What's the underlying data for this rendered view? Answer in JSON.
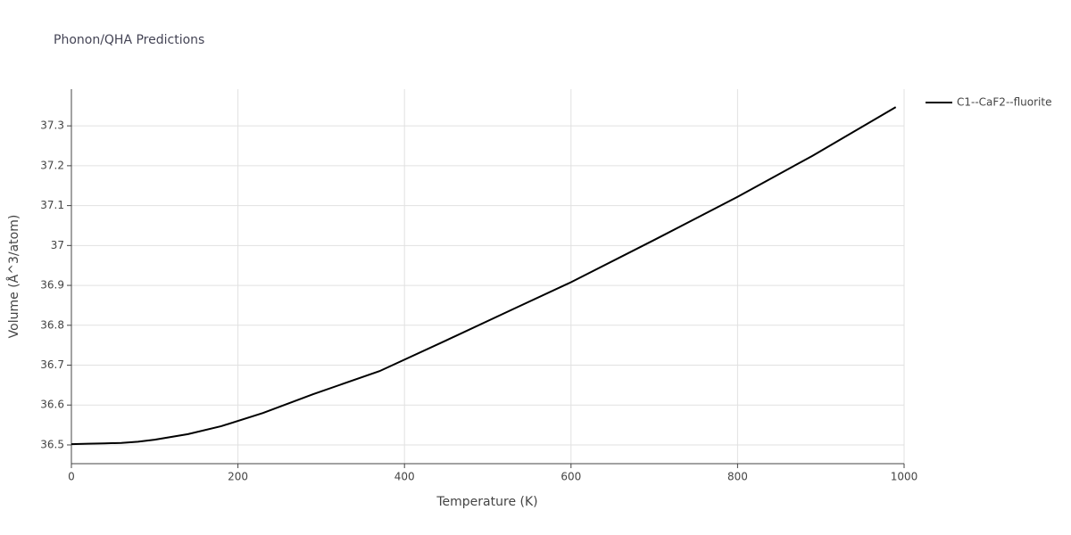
{
  "chart_data": {
    "type": "line",
    "title": "Phonon/QHA Predictions",
    "x_label": "Temperature (K)",
    "y_label": "Volume (Å^3/atom)",
    "x": [
      0,
      20,
      40,
      60,
      80,
      100,
      140,
      180,
      230,
      290,
      370,
      450,
      530,
      600,
      700,
      800,
      890,
      990
    ],
    "series": [
      {
        "name": "C1--CaF2--fluorite",
        "color": "#000000",
        "values": [
          36.502,
          36.503,
          36.504,
          36.505,
          36.508,
          36.513,
          36.527,
          36.547,
          36.58,
          36.627,
          36.685,
          36.762,
          36.84,
          36.908,
          37.014,
          37.122,
          37.225,
          37.347
        ]
      }
    ],
    "xlim": [
      0,
      1000
    ],
    "xticks": [
      0,
      200,
      400,
      600,
      800,
      1000
    ],
    "ylim": [
      36.453,
      37.392
    ],
    "yticks": [
      36.5,
      36.6,
      36.7,
      36.8,
      36.9,
      37,
      37.1,
      37.2,
      37.3
    ],
    "grid": true,
    "legend": "top-right"
  }
}
